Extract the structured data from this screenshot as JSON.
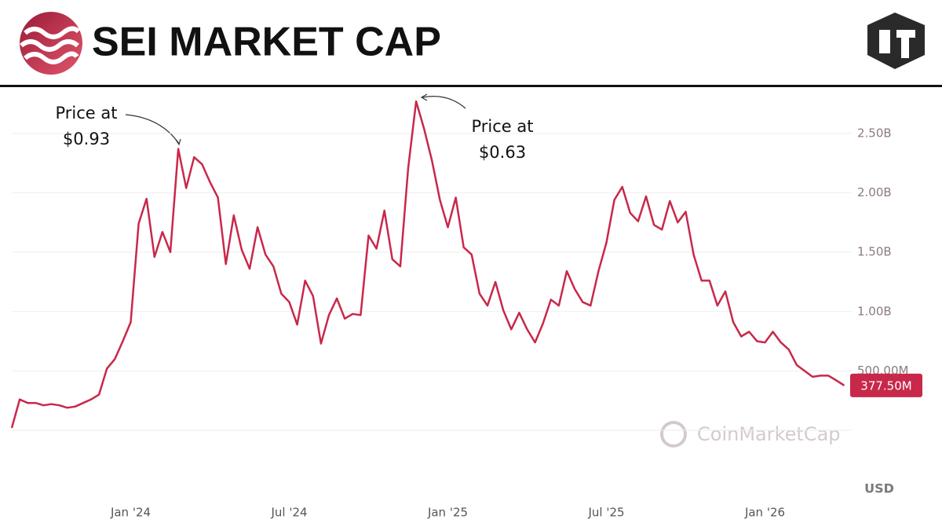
{
  "chart_data": {
    "type": "line",
    "title": "SEI MARKET CAP",
    "color": "#c8284a",
    "categories": [
      null,
      null,
      null,
      null,
      null,
      null,
      null,
      null,
      null,
      null,
      null,
      null,
      null,
      null,
      null,
      "Jan '24",
      null,
      null,
      null,
      null,
      null,
      null,
      null,
      null,
      null,
      null,
      null,
      null,
      null,
      null,
      null,
      null,
      null,
      null,
      null,
      "Jul '24",
      null,
      null,
      null,
      null,
      null,
      null,
      null,
      null,
      null,
      null,
      null,
      null,
      null,
      null,
      null,
      null,
      null,
      null,
      null,
      "Jan '25",
      null,
      null,
      null,
      null,
      null,
      null,
      null,
      null,
      null,
      null,
      null,
      null,
      null,
      null,
      null,
      null,
      null,
      null,
      null,
      "Jul '25",
      null,
      null,
      null,
      null,
      null,
      null,
      null,
      null,
      null,
      null,
      null,
      null,
      null,
      null,
      null,
      null,
      null,
      null,
      null,
      "Jan '26",
      null,
      null,
      null,
      null,
      null,
      null,
      null,
      null,
      null,
      null
    ],
    "values": [
      0.02,
      0.26,
      0.23,
      0.23,
      0.21,
      0.22,
      0.21,
      0.19,
      0.2,
      0.23,
      0.26,
      0.3,
      0.52,
      0.6,
      0.75,
      0.91,
      1.74,
      1.95,
      1.46,
      1.67,
      1.5,
      2.37,
      2.04,
      2.3,
      2.24,
      2.09,
      1.96,
      1.4,
      1.81,
      1.52,
      1.36,
      1.71,
      1.48,
      1.38,
      1.15,
      1.08,
      0.89,
      1.26,
      1.13,
      0.73,
      0.97,
      1.11,
      0.94,
      0.98,
      0.97,
      1.64,
      1.53,
      1.85,
      1.44,
      1.38,
      2.21,
      2.77,
      2.54,
      2.27,
      1.94,
      1.71,
      1.96,
      1.54,
      1.48,
      1.15,
      1.05,
      1.25,
      1.01,
      0.85,
      0.99,
      0.85,
      0.74,
      0.9,
      1.1,
      1.05,
      1.34,
      1.19,
      1.08,
      1.05,
      1.34,
      1.58,
      1.94,
      2.05,
      1.83,
      1.76,
      1.97,
      1.73,
      1.69,
      1.93,
      1.75,
      1.84,
      1.48,
      1.26,
      1.26,
      1.05,
      1.17,
      0.91,
      0.79,
      0.83,
      0.75,
      0.74,
      0.83,
      0.74,
      0.68,
      0.55,
      0.5,
      0.45,
      0.46,
      0.46,
      0.42,
      0.3775
    ],
    "value_labels": [
      null,
      null,
      null,
      null,
      null,
      null,
      null,
      null,
      null,
      null,
      null,
      null,
      null,
      null,
      null,
      null,
      null,
      null,
      null,
      null,
      null,
      null,
      null,
      null,
      null,
      null,
      null,
      null,
      null,
      null,
      null,
      null,
      null,
      null,
      null,
      null,
      null,
      null,
      null,
      null,
      null,
      null,
      null,
      null,
      null,
      null,
      null,
      null,
      null,
      null,
      null,
      null,
      null,
      null,
      null,
      null,
      null,
      null,
      null,
      null,
      null,
      null,
      null,
      null,
      null,
      null,
      null,
      null,
      null,
      null,
      null,
      null,
      null,
      null,
      null,
      null,
      null,
      null,
      null,
      null,
      null,
      null,
      null,
      null,
      null,
      null,
      null,
      null,
      null,
      null,
      null,
      null,
      null,
      null,
      null,
      null,
      null,
      null,
      null,
      null,
      null,
      null,
      null,
      null,
      null,
      "377.50M"
    ],
    "ylim": [
      0,
      2.83
    ],
    "yticks": [
      {
        "value": 0.5,
        "label": "500.00M"
      },
      {
        "value": 1.0,
        "label": "1.00B"
      },
      {
        "value": 1.5,
        "label": "1.50B"
      },
      {
        "value": 2.0,
        "label": "2.00B"
      },
      {
        "value": 2.5,
        "label": "2.50B"
      }
    ],
    "grid": true,
    "annotations": [
      {
        "lines": [
          "Price at",
          "$0.93"
        ]
      },
      {
        "lines": [
          "Price at",
          "$0.63"
        ]
      }
    ],
    "unit_label": "USD",
    "watermark": "CoinMarketCap"
  }
}
